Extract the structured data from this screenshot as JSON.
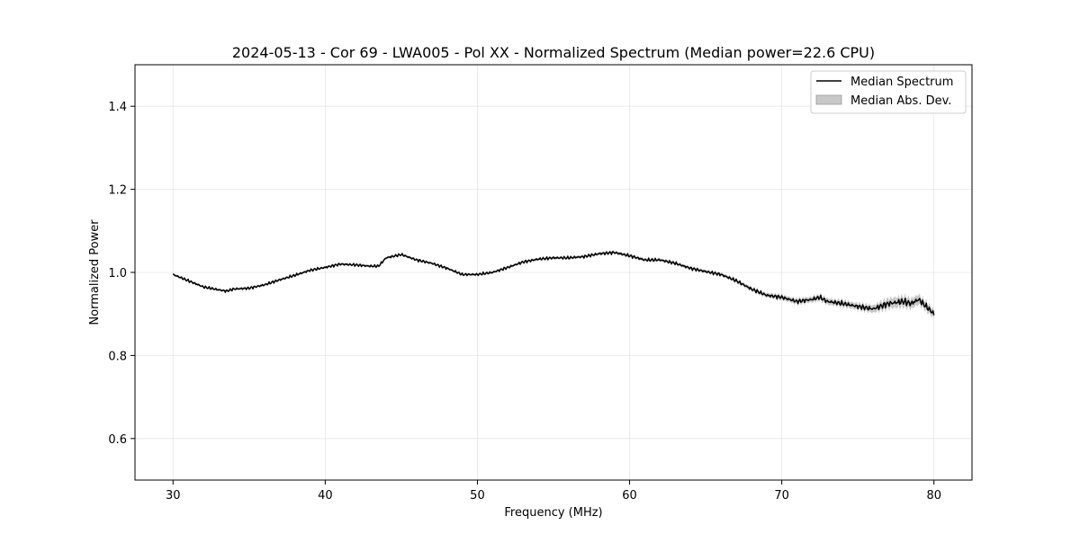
{
  "chart_data": {
    "type": "line",
    "title": "2024-05-13 - Cor 69 - LWA005 - Pol XX - Normalized Spectrum (Median power=22.6 CPU)",
    "xlabel": "Frequency (MHz)",
    "ylabel": "Normalized Power",
    "xlim": [
      27.5,
      82.5
    ],
    "ylim": [
      0.5,
      1.5
    ],
    "xticks": [
      30,
      40,
      50,
      60,
      70,
      80
    ],
    "xtick_labels": [
      "30",
      "40",
      "50",
      "60",
      "70",
      "80"
    ],
    "yticks": [
      0.6,
      0.8,
      1.0,
      1.2,
      1.4
    ],
    "ytick_labels": [
      "0.6",
      "0.8",
      "1.0",
      "1.2",
      "1.4"
    ],
    "grid": true,
    "legend_position": "top-right",
    "legend": [
      {
        "label": "Median Spectrum",
        "kind": "line",
        "color": "#000000"
      },
      {
        "label": "Median Abs. Dev.",
        "kind": "band",
        "color": "#b0b0b0"
      }
    ],
    "series": [
      {
        "name": "Median Spectrum",
        "color": "#000000",
        "x": [
          30,
          31,
          32,
          33,
          33.5,
          34,
          35,
          36,
          37,
          38,
          39,
          40,
          41,
          42,
          43,
          43.5,
          44,
          45,
          46,
          47,
          48,
          49,
          50,
          51,
          52,
          53,
          54,
          55,
          56,
          57,
          58,
          59,
          60,
          61,
          62,
          63,
          64,
          65,
          66,
          67,
          68,
          69,
          70,
          71,
          72,
          72.5,
          73,
          74,
          75,
          76,
          77,
          78,
          78.5,
          79,
          80
        ],
        "y": [
          0.995,
          0.98,
          0.965,
          0.958,
          0.955,
          0.96,
          0.962,
          0.97,
          0.982,
          0.993,
          1.005,
          1.012,
          1.02,
          1.018,
          1.015,
          1.015,
          1.035,
          1.043,
          1.03,
          1.022,
          1.01,
          0.995,
          0.995,
          1.0,
          1.012,
          1.025,
          1.032,
          1.035,
          1.035,
          1.038,
          1.045,
          1.048,
          1.04,
          1.03,
          1.03,
          1.022,
          1.01,
          1.002,
          0.995,
          0.98,
          0.96,
          0.945,
          0.94,
          0.93,
          0.935,
          0.94,
          0.93,
          0.925,
          0.918,
          0.912,
          0.925,
          0.93,
          0.925,
          0.935,
          0.9
        ]
      }
    ],
    "band": {
      "name": "Median Abs. Dev.",
      "color": "#b0b0b0",
      "x": [
        30,
        40,
        50,
        60,
        65,
        68,
        70,
        72,
        74,
        75,
        76,
        77,
        78,
        79,
        80
      ],
      "halfwidth": [
        0.003,
        0.003,
        0.003,
        0.004,
        0.004,
        0.005,
        0.006,
        0.007,
        0.008,
        0.008,
        0.009,
        0.012,
        0.013,
        0.012,
        0.01
      ]
    }
  }
}
